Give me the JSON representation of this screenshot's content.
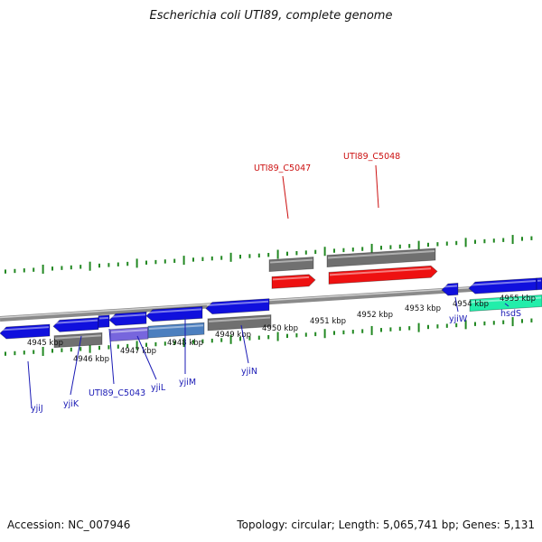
{
  "title": "Escherichia coli UTI89, complete genome",
  "footer": {
    "accession": "Accession: NC_007946",
    "summary": "Topology: circular; Length: 5,065,741 bp; Genes: 5,131"
  },
  "colors": {
    "forward_gene": "#1010dd",
    "reverse_gene": "#1010dd",
    "pseudo_gene": "#707070",
    "highlight_gene": "#ee1111",
    "green_gene": "#22eeaa",
    "purple_gene": "#7766dd",
    "teal_gene": "#4c7fbf",
    "backbone": "#8a8a8a",
    "tick": "#228822",
    "label_blue": "#1a1ab5",
    "label_red": "#cc1111"
  },
  "scale_labels": [
    "4945 kbp",
    "4946 kbp",
    "4947 kbp",
    "4948 kbp",
    "4949 kbp",
    "4950 kbp",
    "4951 kbp",
    "4952 kbp",
    "4953 kbp",
    "4954 kbp",
    "4955 kbp"
  ],
  "gene_labels": {
    "yjiJ": "yjiJ",
    "yjiK": "yjiK",
    "UTI89_C5043": "UTI89_C5043",
    "yjiL": "yjiL",
    "yjiM": "yjiM",
    "yjiN": "yjiN",
    "yjiW": "yjiW",
    "hsdS": "hsdS",
    "UTI89_C5047": "UTI89_C5047",
    "UTI89_C5048": "UTI89_C5048"
  }
}
